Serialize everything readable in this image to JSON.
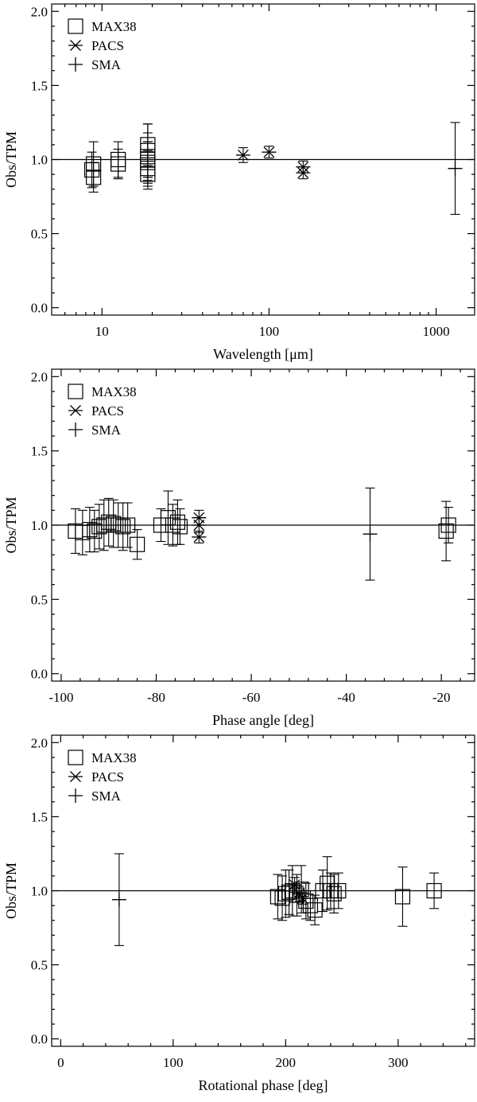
{
  "chart_data": [
    {
      "type": "scatter",
      "x_scale": "log",
      "xlabel": "Wavelength [μm]",
      "ylabel": "Obs/TPM",
      "xlim": [
        5,
        1700
      ],
      "ylim": [
        -0.05,
        2.05
      ],
      "x_ticks": [
        10,
        100,
        1000
      ],
      "x_tick_labels": [
        "10",
        "100",
        "1000"
      ],
      "y_ticks": [
        0,
        0.5,
        1,
        1.5,
        2
      ],
      "y_tick_labels": [
        "0.0",
        "0.5",
        "1.0",
        "1.5",
        "2.0"
      ],
      "reference_line_y": 1.0,
      "legend": {
        "position": "top-left",
        "entries": [
          "MAX38",
          "PACS",
          "SMA"
        ]
      },
      "series": [
        {
          "name": "MAX38",
          "marker": "square",
          "points": [
            {
              "x": 8.9,
              "y": 0.88,
              "err": 0.1
            },
            {
              "x": 8.9,
              "y": 0.97,
              "err": 0.15
            },
            {
              "x": 8.7,
              "y": 0.93,
              "err": 0.12
            },
            {
              "x": 12.5,
              "y": 0.97,
              "err": 0.1
            },
            {
              "x": 12.5,
              "y": 1.0,
              "err": 0.12
            },
            {
              "x": 18.8,
              "y": 0.94,
              "err": 0.12
            },
            {
              "x": 18.8,
              "y": 0.98,
              "err": 0.14
            },
            {
              "x": 18.8,
              "y": 1.02,
              "err": 0.16
            },
            {
              "x": 18.8,
              "y": 1.06,
              "err": 0.18
            },
            {
              "x": 18.8,
              "y": 1.1,
              "err": 0.14
            },
            {
              "x": 18.8,
              "y": 0.9,
              "err": 0.1
            },
            {
              "x": 18.8,
              "y": 1.0,
              "err": 0.12
            }
          ]
        },
        {
          "name": "PACS",
          "marker": "asterisk",
          "points": [
            {
              "x": 70,
              "y": 1.03,
              "err": 0.05
            },
            {
              "x": 100,
              "y": 1.05,
              "err": 0.04
            },
            {
              "x": 160,
              "y": 0.91,
              "err": 0.04
            },
            {
              "x": 160,
              "y": 0.95,
              "err": 0.04
            }
          ]
        },
        {
          "name": "SMA",
          "marker": "plus",
          "points": [
            {
              "x": 1300,
              "y": 0.94,
              "err": 0.31
            }
          ]
        }
      ]
    },
    {
      "type": "scatter",
      "xlabel": "Phase angle [deg]",
      "ylabel": "Obs/TPM",
      "xlim": [
        -102,
        -13
      ],
      "ylim": [
        -0.05,
        2.05
      ],
      "x_ticks": [
        -100,
        -80,
        -60,
        -40,
        -20
      ],
      "x_tick_labels": [
        "-100",
        "-80",
        "-60",
        "-40",
        "-20"
      ],
      "y_ticks": [
        0,
        0.5,
        1,
        1.5,
        2
      ],
      "y_tick_labels": [
        "0.0",
        "0.5",
        "1.0",
        "1.5",
        "2.0"
      ],
      "reference_line_y": 1.0,
      "legend": {
        "position": "top-left",
        "entries": [
          "MAX38",
          "PACS",
          "SMA"
        ]
      },
      "series": [
        {
          "name": "MAX38",
          "marker": "square",
          "points": [
            {
              "x": -97,
              "y": 0.96,
              "err": 0.15
            },
            {
              "x": -95.5,
              "y": 0.95,
              "err": 0.15
            },
            {
              "x": -94,
              "y": 0.97,
              "err": 0.15
            },
            {
              "x": -93,
              "y": 0.96,
              "err": 0.14
            },
            {
              "x": -92,
              "y": 0.99,
              "err": 0.15
            },
            {
              "x": -91,
              "y": 1.0,
              "err": 0.17
            },
            {
              "x": -90,
              "y": 1.02,
              "err": 0.16
            },
            {
              "x": -89,
              "y": 1.01,
              "err": 0.16
            },
            {
              "x": -88,
              "y": 1.0,
              "err": 0.15
            },
            {
              "x": -87,
              "y": 0.99,
              "err": 0.16
            },
            {
              "x": -86,
              "y": 1.0,
              "err": 0.15
            },
            {
              "x": -84,
              "y": 0.87,
              "err": 0.1
            },
            {
              "x": -79,
              "y": 1.0,
              "err": 0.11
            },
            {
              "x": -77.5,
              "y": 1.05,
              "err": 0.18
            },
            {
              "x": -76.5,
              "y": 1.0,
              "err": 0.14
            },
            {
              "x": -75.5,
              "y": 1.02,
              "err": 0.15
            },
            {
              "x": -75,
              "y": 0.99,
              "err": 0.12
            },
            {
              "x": -19,
              "y": 0.96,
              "err": 0.2
            },
            {
              "x": -18.5,
              "y": 1.0,
              "err": 0.12
            }
          ]
        },
        {
          "name": "PACS",
          "marker": "asterisk",
          "points": [
            {
              "x": -71,
              "y": 1.05,
              "err": 0.05
            },
            {
              "x": -71,
              "y": 1.0,
              "err": 0.05
            },
            {
              "x": -71,
              "y": 0.92,
              "err": 0.04
            }
          ]
        },
        {
          "name": "SMA",
          "marker": "plus",
          "points": [
            {
              "x": -35,
              "y": 0.94,
              "err": 0.31
            }
          ]
        }
      ]
    },
    {
      "type": "scatter",
      "xlabel": "Rotational phase [deg]",
      "ylabel": "Obs/TPM",
      "xlim": [
        -8,
        368
      ],
      "ylim": [
        -0.05,
        2.05
      ],
      "x_ticks": [
        0,
        100,
        200,
        300
      ],
      "x_tick_labels": [
        "0",
        "100",
        "200",
        "300"
      ],
      "y_ticks": [
        0,
        0.5,
        1,
        1.5,
        2
      ],
      "y_tick_labels": [
        "0.0",
        "0.5",
        "1.0",
        "1.5",
        "2.0"
      ],
      "reference_line_y": 1.0,
      "legend": {
        "position": "top-left",
        "entries": [
          "MAX38",
          "PACS",
          "SMA"
        ]
      },
      "series": [
        {
          "name": "MAX38",
          "marker": "square",
          "points": [
            {
              "x": 193,
              "y": 0.96,
              "err": 0.15
            },
            {
              "x": 197,
              "y": 0.95,
              "err": 0.15
            },
            {
              "x": 200,
              "y": 0.98,
              "err": 0.16
            },
            {
              "x": 203,
              "y": 0.99,
              "err": 0.15
            },
            {
              "x": 206,
              "y": 1.0,
              "err": 0.17
            },
            {
              "x": 210,
              "y": 0.97,
              "err": 0.14
            },
            {
              "x": 214,
              "y": 1.01,
              "err": 0.16
            },
            {
              "x": 218,
              "y": 0.93,
              "err": 0.12
            },
            {
              "x": 222,
              "y": 0.9,
              "err": 0.1
            },
            {
              "x": 226,
              "y": 0.87,
              "err": 0.1
            },
            {
              "x": 233,
              "y": 1.0,
              "err": 0.14
            },
            {
              "x": 237,
              "y": 1.05,
              "err": 0.18
            },
            {
              "x": 240,
              "y": 1.0,
              "err": 0.12
            },
            {
              "x": 243,
              "y": 0.98,
              "err": 0.13
            },
            {
              "x": 247,
              "y": 1.0,
              "err": 0.12
            },
            {
              "x": 304,
              "y": 0.96,
              "err": 0.2
            },
            {
              "x": 332,
              "y": 1.0,
              "err": 0.12
            }
          ]
        },
        {
          "name": "PACS",
          "marker": "asterisk",
          "points": [
            {
              "x": 208,
              "y": 1.04,
              "err": 0.05
            },
            {
              "x": 212,
              "y": 0.98,
              "err": 0.05
            },
            {
              "x": 215,
              "y": 0.95,
              "err": 0.04
            }
          ]
        },
        {
          "name": "SMA",
          "marker": "plus",
          "points": [
            {
              "x": 52,
              "y": 0.94,
              "err": 0.31
            }
          ]
        }
      ]
    }
  ]
}
